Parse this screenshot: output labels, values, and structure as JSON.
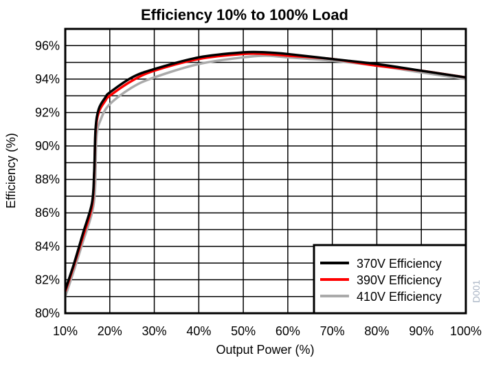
{
  "chart_data": {
    "type": "line",
    "title": "Efficiency 10% to 100% Load",
    "xlabel": "Output Power (%)",
    "ylabel": "Efficiency (%)",
    "xlim": [
      10,
      100
    ],
    "ylim": [
      80,
      97
    ],
    "xticks": [
      10,
      20,
      30,
      40,
      50,
      60,
      70,
      80,
      90,
      100
    ],
    "xtick_labels": [
      "10%",
      "20%",
      "30%",
      "40%",
      "50%",
      "60%",
      "70%",
      "80%",
      "90%",
      "100%"
    ],
    "yticks": [
      80,
      82,
      84,
      86,
      88,
      90,
      92,
      94,
      96
    ],
    "ytick_labels": [
      "80%",
      "82%",
      "84%",
      "86%",
      "88%",
      "90%",
      "92%",
      "94%",
      "96%"
    ],
    "grid": true,
    "legend_position": "bottom-right",
    "watermark": "D001",
    "series": [
      {
        "name": "370V Efficiency",
        "color": "#000000",
        "x": [
          10,
          12,
          14,
          16,
          16.5,
          16.8,
          17.5,
          19,
          20,
          25,
          30,
          40,
          50,
          55,
          60,
          70,
          80,
          90,
          100
        ],
        "y": [
          81.4,
          83,
          84.8,
          86.6,
          88.5,
          91,
          92.2,
          92.9,
          93.2,
          94.1,
          94.6,
          95.3,
          95.6,
          95.6,
          95.5,
          95.2,
          94.9,
          94.5,
          94.1
        ]
      },
      {
        "name": "390V Efficiency",
        "color": "#ff0000",
        "x": [
          10,
          12,
          14,
          16,
          16.5,
          16.8,
          17.5,
          19,
          20,
          25,
          30,
          40,
          50,
          55,
          60,
          70,
          80,
          90,
          100
        ],
        "y": [
          81.3,
          82.9,
          84.6,
          86.4,
          88.3,
          90.8,
          92.0,
          92.7,
          93.0,
          93.9,
          94.5,
          95.2,
          95.5,
          95.5,
          95.4,
          95.2,
          94.8,
          94.5,
          94.1
        ]
      },
      {
        "name": "410V Efficiency",
        "color": "#aaaaaa",
        "x": [
          10,
          12,
          14,
          16,
          16.7,
          17,
          18,
          20,
          25,
          30,
          40,
          50,
          55,
          60,
          70,
          80,
          90,
          100
        ],
        "y": [
          81.0,
          82.6,
          84.3,
          86.0,
          87.5,
          90.5,
          91.6,
          92.5,
          93.5,
          94.1,
          94.9,
          95.3,
          95.4,
          95.3,
          95.1,
          94.8,
          94.4,
          94.0
        ]
      }
    ]
  }
}
